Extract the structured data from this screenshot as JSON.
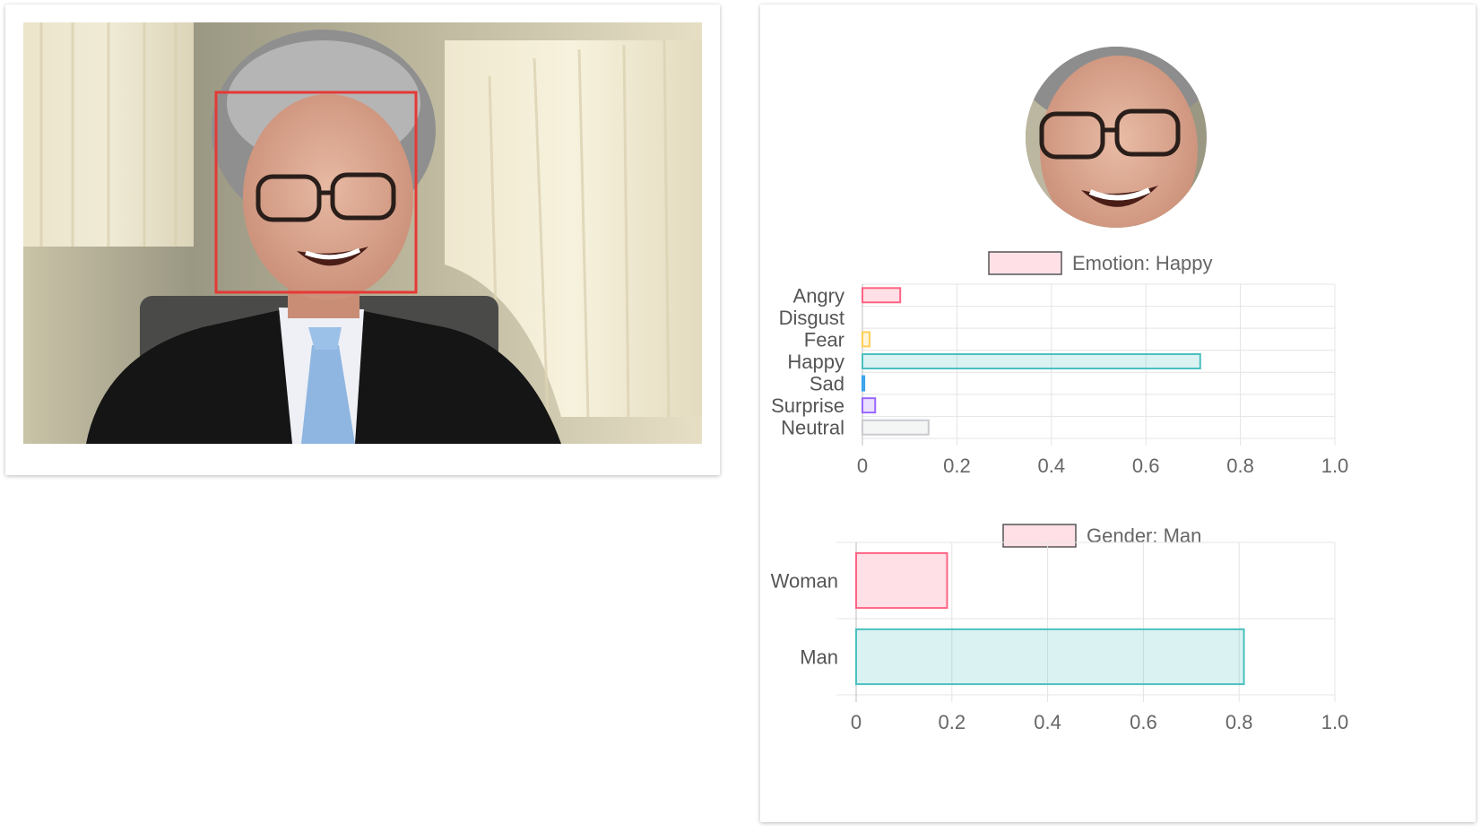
{
  "detection": {
    "face_box_color": "#e53935"
  },
  "emotion_chart": {
    "chart_data": {
      "type": "bar",
      "orientation": "horizontal",
      "legend_label": "Emotion: Happy",
      "categories": [
        "Angry",
        "Disgust",
        "Fear",
        "Happy",
        "Sad",
        "Surprise",
        "Neutral"
      ],
      "values": [
        0.08,
        0.0,
        0.015,
        0.715,
        0.004,
        0.027,
        0.14
      ],
      "xlim": [
        0,
        1.0
      ],
      "x_ticks": [
        "0",
        "0.2",
        "0.4",
        "0.6",
        "0.8",
        "1.0"
      ],
      "grid": true,
      "legend_position": "top"
    }
  },
  "gender_chart": {
    "chart_data": {
      "type": "bar",
      "orientation": "horizontal",
      "legend_label": "Gender: Man",
      "categories": [
        "Woman",
        "Man"
      ],
      "values": [
        0.19,
        0.81
      ],
      "xlim": [
        0,
        1.0
      ],
      "x_ticks": [
        "0",
        "0.2",
        "0.4",
        "0.6",
        "0.8",
        "1.0"
      ],
      "grid": true,
      "legend_position": "top"
    }
  },
  "colors": {
    "emotion_bars": [
      {
        "fill": "rgba(255,99,132,0.2)",
        "stroke": "#ff6384"
      },
      {
        "fill": "rgba(255,99,132,0.2)",
        "stroke": "#ff6384"
      },
      {
        "fill": "rgba(255,206,86,0.2)",
        "stroke": "#ffce56"
      },
      {
        "fill": "rgba(75,192,192,0.2)",
        "stroke": "#4bc0c0"
      },
      {
        "fill": "rgba(54,162,235,0.2)",
        "stroke": "#36a2eb"
      },
      {
        "fill": "rgba(153,102,255,0.2)",
        "stroke": "#9966ff"
      },
      {
        "fill": "rgba(201,203,207,0.2)",
        "stroke": "#c9cbcf"
      }
    ],
    "gender_bars": [
      {
        "fill": "rgba(255,99,132,0.2)",
        "stroke": "#ff6384"
      },
      {
        "fill": "rgba(75,192,192,0.2)",
        "stroke": "#4bc0c0"
      }
    ],
    "legend_box": {
      "fill": "rgba(255,99,132,0.2)",
      "stroke": "#555555"
    },
    "grid": "#e4e4e4",
    "axis_text": "#666666",
    "label_text": "#555555"
  }
}
